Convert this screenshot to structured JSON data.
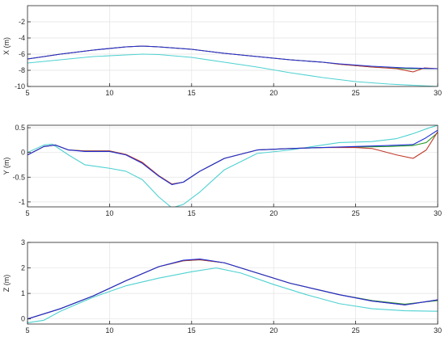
{
  "chart_data": [
    {
      "type": "line",
      "ylabel": "X (m)",
      "xlim": [
        5,
        30
      ],
      "ylim": [
        -10,
        0
      ],
      "xticks": [
        5,
        10,
        15,
        20,
        25,
        30
      ],
      "yticks": [
        -10,
        -8,
        -6,
        -4,
        -2
      ],
      "grid": true,
      "series": [
        {
          "color": "#1f2fd6",
          "values": [
            [
              5,
              -6.6
            ],
            [
              7,
              -6.0
            ],
            [
              9,
              -5.5
            ],
            [
              11,
              -5.1
            ],
            [
              12,
              -5.0
            ],
            [
              13,
              -5.1
            ],
            [
              15,
              -5.4
            ],
            [
              17,
              -5.9
            ],
            [
              19,
              -6.3
            ],
            [
              21,
              -6.7
            ],
            [
              23,
              -7.0
            ],
            [
              24,
              -7.2
            ],
            [
              26,
              -7.5
            ],
            [
              28,
              -7.7
            ],
            [
              30,
              -7.8
            ]
          ]
        },
        {
          "color": "#c0392b",
          "values": [
            [
              5,
              -6.6
            ],
            [
              7,
              -6.0
            ],
            [
              9,
              -5.5
            ],
            [
              11,
              -5.1
            ],
            [
              12,
              -5.0
            ],
            [
              13,
              -5.1
            ],
            [
              15,
              -5.4
            ],
            [
              17,
              -5.9
            ],
            [
              19,
              -6.3
            ],
            [
              21,
              -6.7
            ],
            [
              23,
              -7.0
            ],
            [
              24,
              -7.25
            ],
            [
              26,
              -7.6
            ],
            [
              27.5,
              -7.8
            ],
            [
              28.5,
              -8.2
            ],
            [
              29.2,
              -7.7
            ],
            [
              30,
              -7.8
            ]
          ]
        },
        {
          "color": "#2a9d2a",
          "values": [
            [
              5,
              -6.6
            ],
            [
              7,
              -6.0
            ],
            [
              9,
              -5.5
            ],
            [
              11,
              -5.1
            ],
            [
              12,
              -5.0
            ],
            [
              13,
              -5.1
            ],
            [
              15,
              -5.4
            ],
            [
              17,
              -5.9
            ],
            [
              19,
              -6.3
            ],
            [
              21,
              -6.7
            ],
            [
              23,
              -7.0
            ],
            [
              24,
              -7.25
            ],
            [
              26,
              -7.6
            ],
            [
              28,
              -7.8
            ],
            [
              30,
              -7.8
            ]
          ]
        },
        {
          "color": "#4fd1d1",
          "values": [
            [
              5,
              -7.1
            ],
            [
              7,
              -6.7
            ],
            [
              9,
              -6.3
            ],
            [
              11,
              -6.1
            ],
            [
              12,
              -6.0
            ],
            [
              13,
              -6.05
            ],
            [
              15,
              -6.4
            ],
            [
              17,
              -7.0
            ],
            [
              19,
              -7.6
            ],
            [
              21,
              -8.3
            ],
            [
              23,
              -8.9
            ],
            [
              25,
              -9.4
            ],
            [
              27,
              -9.7
            ],
            [
              29,
              -9.9
            ],
            [
              30,
              -10.0
            ]
          ]
        }
      ]
    },
    {
      "type": "line",
      "ylabel": "Y (m)",
      "xlim": [
        5,
        30
      ],
      "ylim": [
        -1.1,
        0.55
      ],
      "xticks": [
        5,
        10,
        15,
        20,
        25,
        30
      ],
      "yticks": [
        -1,
        -0.5,
        0,
        0.5
      ],
      "grid": true,
      "series": [
        {
          "color": "#1f2fd6",
          "values": [
            [
              5,
              -0.05
            ],
            [
              6,
              0.12
            ],
            [
              6.7,
              0.15
            ],
            [
              7.5,
              0.05
            ],
            [
              8.5,
              0.02
            ],
            [
              10,
              0.02
            ],
            [
              11,
              -0.05
            ],
            [
              12,
              -0.22
            ],
            [
              13,
              -0.48
            ],
            [
              13.8,
              -0.65
            ],
            [
              14.5,
              -0.6
            ],
            [
              15.5,
              -0.38
            ],
            [
              17,
              -0.12
            ],
            [
              19,
              0.05
            ],
            [
              21,
              0.08
            ],
            [
              23,
              0.1
            ],
            [
              25,
              0.12
            ],
            [
              27,
              0.14
            ],
            [
              28.5,
              0.16
            ],
            [
              29.2,
              0.28
            ],
            [
              30,
              0.45
            ]
          ]
        },
        {
          "color": "#c0392b",
          "values": [
            [
              5,
              -0.05
            ],
            [
              6,
              0.12
            ],
            [
              6.7,
              0.15
            ],
            [
              7.5,
              0.05
            ],
            [
              8.5,
              0.03
            ],
            [
              10,
              0.03
            ],
            [
              11,
              -0.04
            ],
            [
              12,
              -0.2
            ],
            [
              13,
              -0.47
            ],
            [
              13.8,
              -0.64
            ],
            [
              14.5,
              -0.6
            ],
            [
              15.5,
              -0.38
            ],
            [
              17,
              -0.12
            ],
            [
              19,
              0.05
            ],
            [
              21,
              0.08
            ],
            [
              23,
              0.1
            ],
            [
              25,
              0.1
            ],
            [
              26,
              0.08
            ],
            [
              27.5,
              -0.05
            ],
            [
              28.5,
              -0.12
            ],
            [
              29.3,
              0.05
            ],
            [
              30,
              0.42
            ]
          ]
        },
        {
          "color": "#2a9d2a",
          "values": [
            [
              5,
              -0.05
            ],
            [
              6,
              0.12
            ],
            [
              6.7,
              0.15
            ],
            [
              7.5,
              0.05
            ],
            [
              8.5,
              0.03
            ],
            [
              10,
              0.03
            ],
            [
              11,
              -0.04
            ],
            [
              12,
              -0.21
            ],
            [
              13,
              -0.47
            ],
            [
              13.8,
              -0.64
            ],
            [
              14.5,
              -0.6
            ],
            [
              15.5,
              -0.38
            ],
            [
              17,
              -0.12
            ],
            [
              19,
              0.05
            ],
            [
              21,
              0.08
            ],
            [
              23,
              0.1
            ],
            [
              25,
              0.11
            ],
            [
              27,
              0.12
            ],
            [
              28.5,
              0.14
            ],
            [
              29.3,
              0.2
            ],
            [
              30,
              0.4
            ]
          ]
        },
        {
          "color": "#4fd1d1",
          "values": [
            [
              5,
              0.0
            ],
            [
              6,
              0.15
            ],
            [
              6.5,
              0.17
            ],
            [
              7.5,
              -0.05
            ],
            [
              8.5,
              -0.25
            ],
            [
              10,
              -0.32
            ],
            [
              11,
              -0.38
            ],
            [
              12,
              -0.55
            ],
            [
              13,
              -0.9
            ],
            [
              13.8,
              -1.12
            ],
            [
              14.5,
              -1.05
            ],
            [
              15.5,
              -0.8
            ],
            [
              17,
              -0.35
            ],
            [
              19,
              -0.02
            ],
            [
              21,
              0.05
            ],
            [
              23,
              0.15
            ],
            [
              24,
              0.2
            ],
            [
              26,
              0.22
            ],
            [
              27.5,
              0.28
            ],
            [
              28.5,
              0.38
            ],
            [
              29.5,
              0.5
            ],
            [
              30,
              0.55
            ]
          ]
        }
      ]
    },
    {
      "type": "line",
      "ylabel": "Z (m)",
      "xlim": [
        5,
        30
      ],
      "ylim": [
        -0.2,
        3
      ],
      "xticks": [
        5,
        10,
        15,
        20,
        25,
        30
      ],
      "yticks": [
        0,
        1,
        2,
        3
      ],
      "grid": true,
      "series": [
        {
          "color": "#1f2fd6",
          "values": [
            [
              5,
              0.0
            ],
            [
              7,
              0.4
            ],
            [
              9,
              0.9
            ],
            [
              11,
              1.5
            ],
            [
              13,
              2.05
            ],
            [
              14.5,
              2.3
            ],
            [
              15.5,
              2.35
            ],
            [
              17,
              2.2
            ],
            [
              19,
              1.8
            ],
            [
              21,
              1.4
            ],
            [
              23,
              1.1
            ],
            [
              24,
              0.95
            ],
            [
              26,
              0.7
            ],
            [
              28,
              0.55
            ],
            [
              30,
              0.75
            ]
          ]
        },
        {
          "color": "#c0392b",
          "values": [
            [
              5,
              0.0
            ],
            [
              7,
              0.4
            ],
            [
              9,
              0.9
            ],
            [
              11,
              1.5
            ],
            [
              13,
              2.05
            ],
            [
              14.5,
              2.28
            ],
            [
              15.5,
              2.32
            ],
            [
              17,
              2.2
            ],
            [
              19,
              1.8
            ],
            [
              21,
              1.4
            ],
            [
              23,
              1.1
            ],
            [
              24,
              0.95
            ],
            [
              26,
              0.7
            ],
            [
              28,
              0.55
            ],
            [
              29,
              0.65
            ],
            [
              30,
              0.75
            ]
          ]
        },
        {
          "color": "#2a9d2a",
          "values": [
            [
              5,
              0.0
            ],
            [
              7,
              0.4
            ],
            [
              9,
              0.9
            ],
            [
              11,
              1.5
            ],
            [
              13,
              2.05
            ],
            [
              14.5,
              2.28
            ],
            [
              15.5,
              2.32
            ],
            [
              17,
              2.2
            ],
            [
              19,
              1.8
            ],
            [
              21,
              1.4
            ],
            [
              23,
              1.1
            ],
            [
              24,
              0.95
            ],
            [
              26,
              0.72
            ],
            [
              28,
              0.58
            ],
            [
              30,
              0.72
            ]
          ]
        },
        {
          "color": "#4fd1d1",
          "values": [
            [
              5,
              -0.15
            ],
            [
              6,
              -0.05
            ],
            [
              7,
              0.3
            ],
            [
              9,
              0.85
            ],
            [
              11,
              1.3
            ],
            [
              13,
              1.6
            ],
            [
              15,
              1.85
            ],
            [
              16.5,
              2.0
            ],
            [
              18,
              1.8
            ],
            [
              20,
              1.35
            ],
            [
              22,
              0.95
            ],
            [
              24,
              0.6
            ],
            [
              26,
              0.4
            ],
            [
              28,
              0.32
            ],
            [
              30,
              0.3
            ]
          ]
        }
      ]
    }
  ]
}
